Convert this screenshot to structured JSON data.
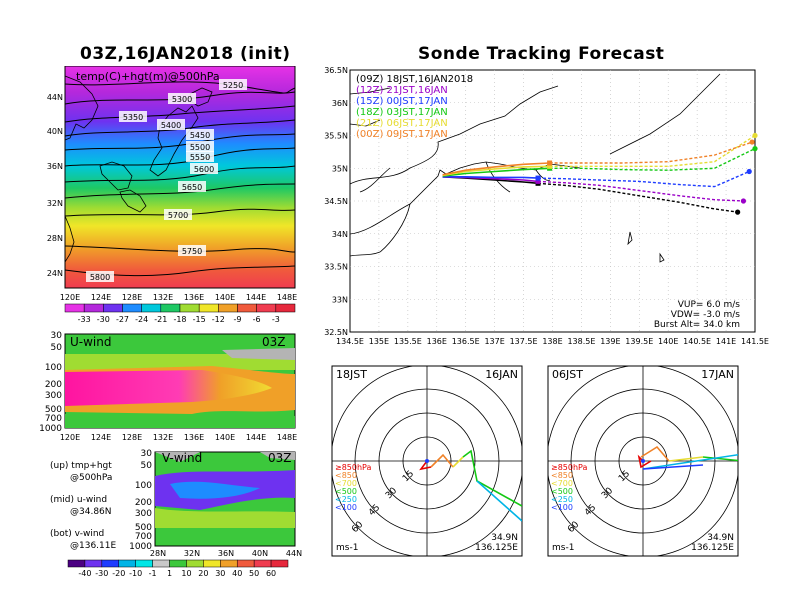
{
  "left_title": "03Z,16JAN2018 (init)",
  "right_title": "Sonde Tracking Forecast",
  "map_panel": {
    "label": "temp(C)+hgt(m)@500hPa",
    "lat_labels": [
      "44N",
      "40N",
      "36N",
      "32N",
      "28N",
      "24N"
    ],
    "lon_labels": [
      "120E",
      "124E",
      "128E",
      "132E",
      "136E",
      "140E",
      "144E",
      "148E"
    ],
    "contour_labels": [
      "5250",
      "5300",
      "5350",
      "5400",
      "5450",
      "5500",
      "5550",
      "5600",
      "5650",
      "5700",
      "5750",
      "5800"
    ],
    "colorbar_labels": [
      "-33",
      "-30",
      "-27",
      "-24",
      "-21",
      "-18",
      "-15",
      "-12",
      "-9",
      "-6",
      "-3"
    ]
  },
  "uwind_panel": {
    "label": "U-wind",
    "time": "03Z",
    "p_labels": [
      "30",
      "50",
      "100",
      "200",
      "300",
      "500",
      "700",
      "1000"
    ],
    "lon_labels": [
      "120E",
      "124E",
      "128E",
      "132E",
      "136E",
      "140E",
      "144E",
      "148E"
    ]
  },
  "vwind_panel": {
    "label": "V-wind",
    "time": "03Z",
    "p_labels": [
      "30",
      "50",
      "100",
      "200",
      "300",
      "500",
      "700",
      "1000"
    ],
    "lat_labels": [
      "28N",
      "32N",
      "36N",
      "40N",
      "44N"
    ],
    "colorbar_labels": [
      "-40",
      "-30",
      "-20",
      "-10",
      "-1",
      "1",
      "10",
      "20",
      "30",
      "40",
      "50",
      "60"
    ]
  },
  "side_notes": {
    "up": "(up) tmp+hgt",
    "up2": "@500hPa",
    "mid": "(mid) u-wind",
    "mid2": "@34.86N",
    "bot": "(bot) v-wind",
    "bot2": "@136.11E"
  },
  "colors": {
    "z09": "#000000",
    "z12": "#9a00c8",
    "z15": "#1e3cff",
    "z18": "#14c814",
    "z21": "#e6dc32",
    "z00": "#f08228"
  },
  "track_legend": [
    {
      "text": "(09Z) 18JST,16JAN2018",
      "color": "#000000"
    },
    {
      "text": "(12Z) 21JST,16JAN",
      "color": "#9a00c8"
    },
    {
      "text": "(15Z) 00JST,17JAN",
      "color": "#1e3cff"
    },
    {
      "text": "(18Z) 03JST,17JAN",
      "color": "#14c814"
    },
    {
      "text": "(21Z) 06JST,17JAN",
      "color": "#e6dc32"
    },
    {
      "text": "(00Z) 09JST,17JAN",
      "color": "#f08228"
    }
  ],
  "track_info": {
    "vup": "VUP= 6.0 m/s",
    "vdw": "VDW= -3.0 m/s",
    "burst": "Burst Alt= 34.0 km"
  },
  "chart_data": {
    "type": "line",
    "xlabels": [
      "134.5E",
      "135E",
      "135.5E",
      "136E",
      "136.5E",
      "137E",
      "137.5E",
      "138E",
      "138.5E",
      "139E",
      "139.5E",
      "140E",
      "140.5E",
      "141E",
      "141.5E"
    ],
    "ylabels": [
      "32.5N",
      "33N",
      "33.5N",
      "34N",
      "34.5N",
      "35N",
      "35.5N",
      "36N",
      "36.5N"
    ],
    "xlim": [
      134.5,
      141.5
    ],
    "ylim": [
      32.5,
      36.5
    ],
    "series": [
      {
        "name": "(09Z) 18JST,16JAN2018",
        "color": "#000000",
        "x": [
          136.1,
          136.5,
          137.0,
          137.5,
          137.75,
          138.2,
          138.8,
          139.5,
          140.2,
          140.8,
          141.2
        ],
        "y": [
          34.87,
          34.85,
          34.82,
          34.79,
          34.77,
          34.74,
          34.68,
          34.58,
          34.48,
          34.38,
          34.33
        ]
      },
      {
        "name": "(12Z) 21JST,16JAN",
        "color": "#9a00c8",
        "x": [
          136.1,
          136.5,
          137.0,
          137.5,
          137.75,
          138.2,
          138.8,
          139.5,
          140.2,
          140.8,
          141.3
        ],
        "y": [
          34.87,
          34.86,
          34.84,
          34.82,
          34.8,
          34.78,
          34.74,
          34.66,
          34.58,
          34.52,
          34.5
        ]
      },
      {
        "name": "(15Z) 00JST,17JAN",
        "color": "#1e3cff",
        "x": [
          136.1,
          136.5,
          137.0,
          137.5,
          137.75,
          138.2,
          138.8,
          139.5,
          140.2,
          140.8,
          141.4
        ],
        "y": [
          34.87,
          34.87,
          34.86,
          34.86,
          34.85,
          34.84,
          34.82,
          34.8,
          34.75,
          34.72,
          34.95
        ]
      },
      {
        "name": "(18Z) 03JST,17JAN",
        "color": "#14c814",
        "x": [
          136.1,
          136.5,
          137.0,
          137.5,
          137.95,
          138.5,
          139.2,
          140.0,
          140.8,
          141.5
        ],
        "y": [
          34.88,
          34.92,
          34.95,
          34.98,
          35.0,
          35.0,
          34.98,
          34.97,
          35.0,
          35.3
        ]
      },
      {
        "name": "(21Z) 06JST,17JAN",
        "color": "#e6dc32",
        "x": [
          136.1,
          136.5,
          137.0,
          137.5,
          137.95,
          138.5,
          139.2,
          140.0,
          140.8,
          141.5
        ],
        "y": [
          34.89,
          34.95,
          34.99,
          35.02,
          35.03,
          35.03,
          35.03,
          35.03,
          35.1,
          35.5
        ]
      },
      {
        "name": "(00Z) 09JST,17JAN",
        "color": "#f08228",
        "x": [
          136.1,
          136.5,
          137.0,
          137.5,
          137.95,
          138.5,
          139.2,
          140.0,
          140.8,
          141.45
        ],
        "y": [
          34.9,
          34.97,
          35.02,
          35.06,
          35.08,
          35.08,
          35.08,
          35.1,
          35.2,
          35.4
        ]
      }
    ]
  },
  "hodographs": [
    {
      "time": "18JST",
      "date": "16JAN",
      "pos1": "34.9N",
      "pos2": "136.125E",
      "unit": "ms-1",
      "rings": [
        "15",
        "30",
        "45",
        "60"
      ]
    },
    {
      "time": "06JST",
      "date": "17JAN",
      "pos1": "34.9N",
      "pos2": "136.125E",
      "unit": "ms-1",
      "rings": [
        "15",
        "30",
        "45",
        "60"
      ]
    }
  ],
  "hodo_legend": [
    {
      "text": "≥850hPa",
      "color": "#e60000"
    },
    {
      "text": "<850",
      "color": "#f08228"
    },
    {
      "text": "<700",
      "color": "#e6dc32"
    },
    {
      "text": "<500",
      "color": "#14c814"
    },
    {
      "text": "<250",
      "color": "#00b4e6"
    },
    {
      "text": "<100",
      "color": "#1e3cff"
    }
  ]
}
